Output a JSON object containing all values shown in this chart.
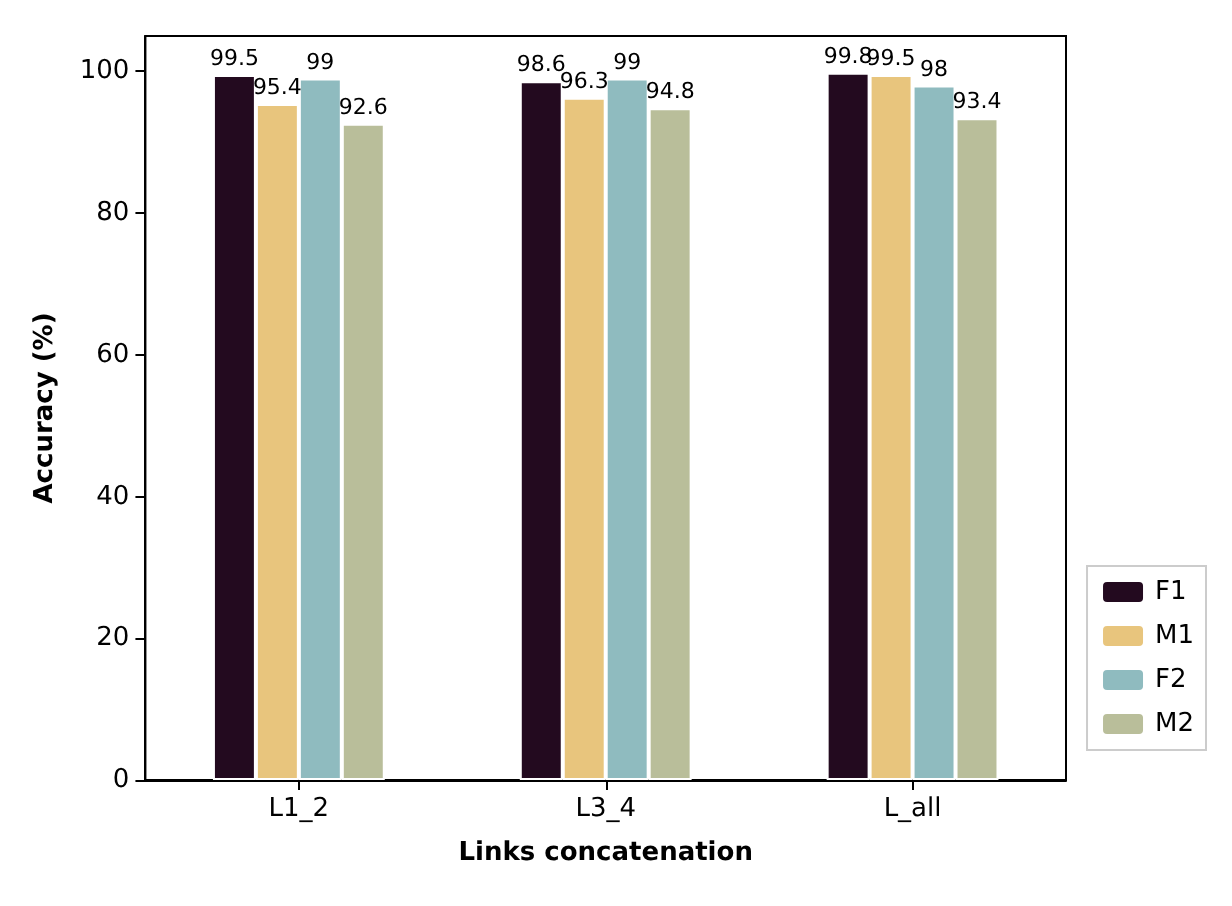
{
  "chart_data": {
    "type": "bar",
    "categories": [
      "L1_2",
      "L3_4",
      "L_all"
    ],
    "series": [
      {
        "name": "F1",
        "color": "#230a1f",
        "values": [
          99.5,
          98.6,
          99.8
        ]
      },
      {
        "name": "M1",
        "color": "#e8c57d",
        "values": [
          95.4,
          96.3,
          99.5
        ]
      },
      {
        "name": "F2",
        "color": "#8fbbbf",
        "values": [
          99,
          99,
          98
        ]
      },
      {
        "name": "M2",
        "color": "#b9be9a",
        "values": [
          92.6,
          94.8,
          93.4
        ]
      }
    ],
    "xlabel": "Links concatenation",
    "ylabel": "Accuracy (%)",
    "ylim": [
      0,
      105
    ],
    "yticks": [
      0,
      20,
      40,
      60,
      80,
      100
    ],
    "data_labels": true,
    "legend": "bottom right",
    "grid": false
  }
}
